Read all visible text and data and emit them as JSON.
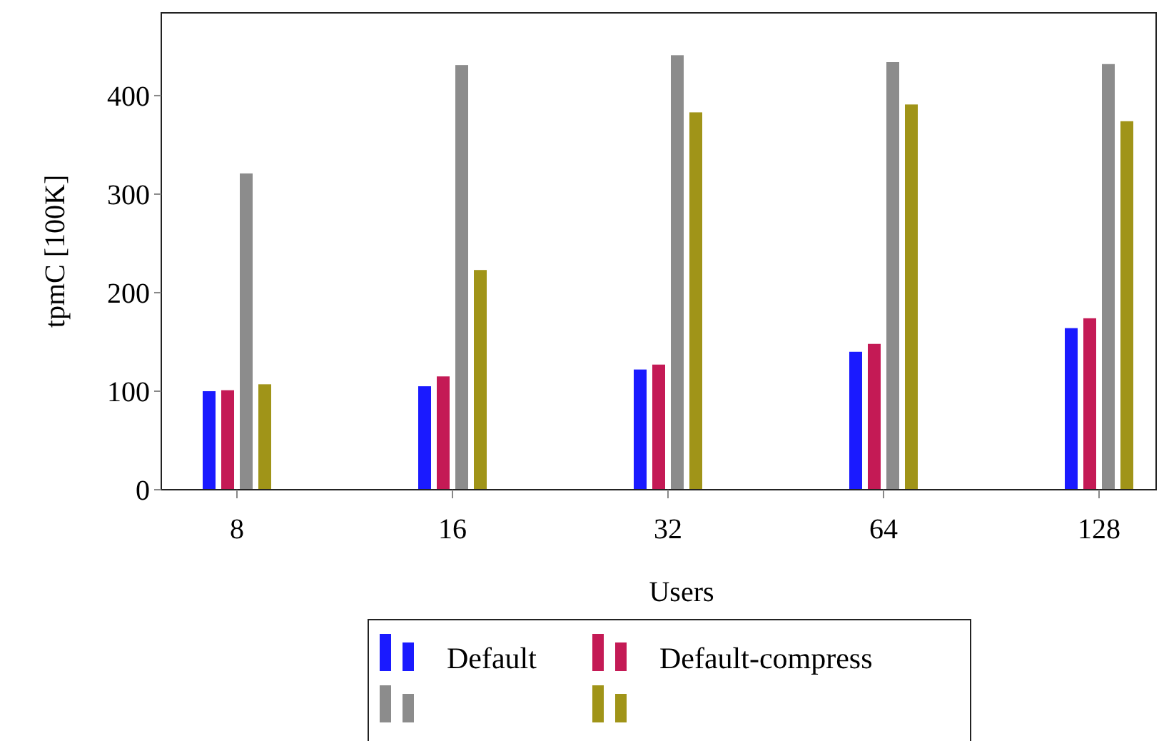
{
  "chart_data": {
    "type": "bar",
    "xlabel": "Users",
    "ylabel": "tpmC [100K]",
    "categories": [
      "8",
      "16",
      "32",
      "64",
      "128"
    ],
    "series": [
      {
        "name": "Default",
        "color": "#1a1aff",
        "values": [
          100,
          105,
          122,
          140,
          164
        ]
      },
      {
        "name": "Default-compress",
        "color": "#c41a55",
        "values": [
          101,
          115,
          127,
          148,
          174
        ]
      },
      {
        "color": "#8c8c8c",
        "values": [
          321,
          431,
          441,
          434,
          432
        ]
      },
      {
        "color": "#a09418",
        "values": [
          107,
          223,
          383,
          391,
          374
        ]
      }
    ],
    "ylim": [
      0,
      484
    ],
    "yticks": [
      0,
      100,
      200,
      300,
      400
    ],
    "grid": false,
    "legend": "bottom"
  }
}
